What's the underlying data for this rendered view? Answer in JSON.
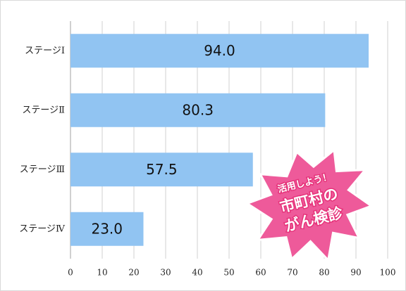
{
  "chart_data": {
    "type": "bar",
    "orientation": "horizontal",
    "categories": [
      "ステージⅠ",
      "ステージⅡ",
      "ステージⅢ",
      "ステージⅣ"
    ],
    "values": [
      94,
      80.3,
      57.5,
      23
    ],
    "value_labels": [
      "94.0",
      "80.3",
      "57.5",
      "23.0"
    ],
    "color": "#91c4f2",
    "xlim": [
      0,
      100
    ],
    "xticks": [
      0,
      10,
      20,
      30,
      40,
      50,
      60,
      70,
      80,
      90,
      100
    ],
    "grid": true,
    "annotations": [
      "活用しよう！",
      "市町村の",
      "がん検診"
    ]
  }
}
